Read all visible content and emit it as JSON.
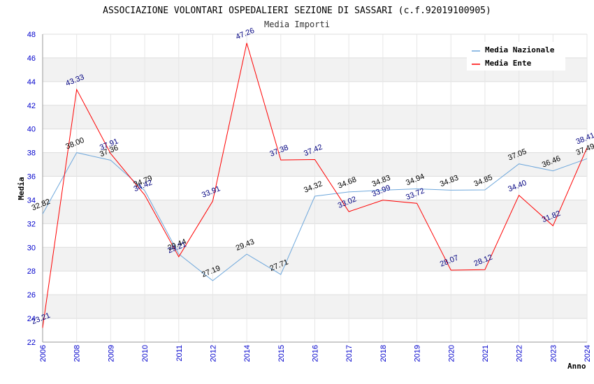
{
  "chart_data": {
    "type": "line",
    "title": "ASSOCIAZIONE VOLONTARI OSPEDALIERI SEZIONE DI SASSARI (c.f.92019100905)",
    "subtitle": "Media Importi",
    "ylabel": "Media",
    "xlabel": "Anno",
    "ylim": [
      22,
      48
    ],
    "yticks": [
      22,
      24,
      26,
      28,
      30,
      32,
      34,
      36,
      38,
      40,
      42,
      44,
      46,
      48
    ],
    "categories": [
      "2006",
      "2008",
      "2009",
      "2010",
      "2011",
      "2012",
      "2014",
      "2015",
      "2016",
      "2017",
      "2018",
      "2019",
      "2020",
      "2021",
      "2022",
      "2023",
      "2024"
    ],
    "legend_position": "top-right",
    "series": [
      {
        "name": "Media Nazionale",
        "color": "#6fa8dc",
        "label_color": "#000000",
        "values": [
          32.82,
          38.0,
          37.36,
          34.79,
          29.44,
          27.19,
          29.43,
          27.71,
          34.32,
          34.68,
          34.83,
          34.94,
          34.83,
          34.85,
          37.05,
          36.46,
          37.49
        ],
        "labels": [
          "32.82",
          "38.00",
          "37.36",
          "34.79",
          "29.44",
          "27.19",
          "29.43",
          "27.71",
          "34.32",
          "34.68",
          "34.83",
          "34.94",
          "34.83",
          "34.85",
          "37.05",
          "36.46",
          "37.49"
        ]
      },
      {
        "name": "Media Ente",
        "color": "#ff0000",
        "label_color": "#000080",
        "values": [
          23.21,
          43.33,
          37.91,
          34.42,
          29.21,
          33.91,
          47.26,
          37.38,
          37.42,
          33.02,
          33.99,
          33.72,
          28.07,
          28.12,
          34.4,
          31.82,
          38.41
        ],
        "labels": [
          "23.21",
          "43.33",
          "37.91",
          "34.42",
          "29.21",
          "33.91",
          "47.26",
          "37.38",
          "37.42",
          "33.02",
          "33.99",
          "33.72",
          "28.07",
          "28.12",
          "34.40",
          "31.82",
          "38.41"
        ]
      }
    ]
  }
}
